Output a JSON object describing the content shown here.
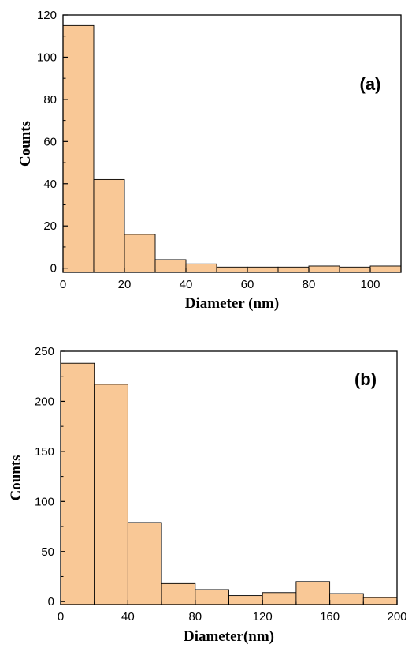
{
  "chart_data": [
    {
      "type": "bar",
      "panel_label": "(a)",
      "xlabel": "Diameter (nm)",
      "ylabel": "Counts",
      "bin_edges": [
        0,
        10,
        20,
        30,
        40,
        50,
        60,
        70,
        80,
        90,
        100,
        110
      ],
      "values": [
        115,
        42,
        16,
        4,
        2,
        0.5,
        0.5,
        0.5,
        1,
        0.5,
        1
      ],
      "xlim": [
        0,
        110
      ],
      "ylim": [
        -2,
        120
      ],
      "xticks": [
        0,
        20,
        40,
        60,
        80,
        100
      ],
      "yticks": [
        0,
        20,
        40,
        60,
        80,
        100,
        120
      ],
      "bar_color": "#f9c896",
      "grid": false
    },
    {
      "type": "bar",
      "panel_label": "(b)",
      "xlabel": "Diameter(nm)",
      "ylabel": "Counts",
      "bin_edges": [
        0,
        20,
        40,
        60,
        80,
        100,
        120,
        140,
        160,
        180,
        200
      ],
      "values": [
        238,
        217,
        79,
        18,
        12,
        6,
        9,
        20,
        8,
        4
      ],
      "xlim": [
        0,
        200
      ],
      "ylim": [
        -3,
        250
      ],
      "xticks": [
        0,
        40,
        80,
        120,
        160,
        200
      ],
      "yticks": [
        0,
        50,
        100,
        150,
        200,
        250
      ],
      "bar_color": "#f9c896",
      "grid": false
    }
  ]
}
